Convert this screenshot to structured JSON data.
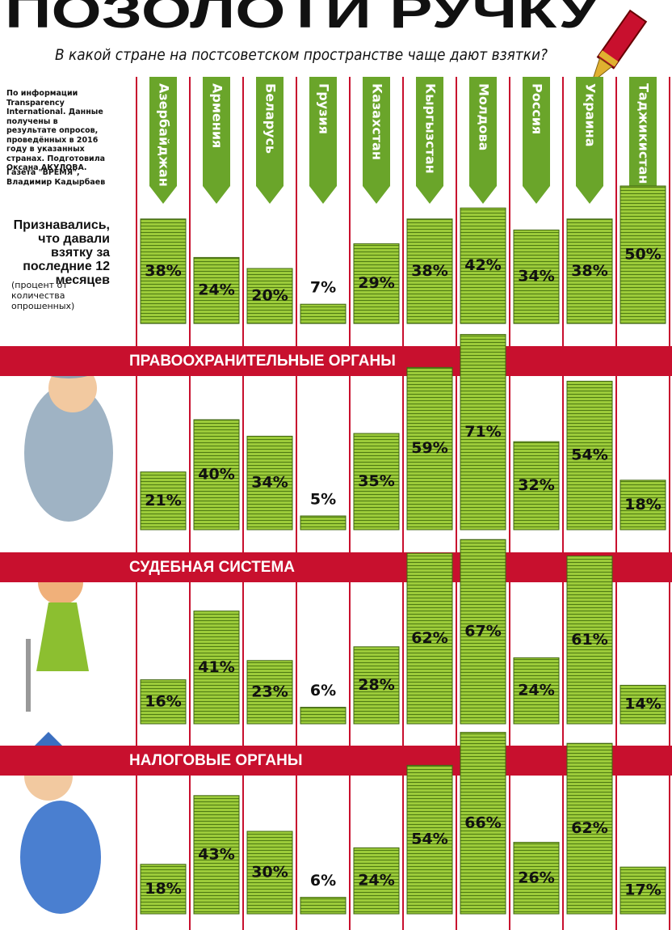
{
  "title": "ПОЗОЛОТИ РУЧКУ",
  "subtitle": "В какой стране на постсоветском пространстве чаще дают взятки?",
  "note": "По информации Transparency International. Данные получены в результате опросов, проведённых в 2016 году в указанных странах. Подготовила Оксана АКУЛОВА.",
  "credit": "Газета \"ВРЕМЯ\", Владимир Кадырбаев",
  "chart_data": [
    {
      "type": "bar",
      "title": "Признавались, что давали взятку за последние 12 месяцев",
      "subtitle": "(процент от количества опрошенных)",
      "categories": [
        "Азербайджан",
        "Армения",
        "Беларусь",
        "Грузия",
        "Казахстан",
        "Кыргызстан",
        "Молдова",
        "Россия",
        "Украина",
        "Таджикистан"
      ],
      "values": [
        38,
        24,
        20,
        7,
        29,
        38,
        42,
        34,
        38,
        50
      ],
      "value_labels": [
        "38%",
        "24%",
        "20%",
        "7%",
        "29%",
        "38%",
        "42%",
        "34%",
        "38%",
        "50%"
      ],
      "color": "#8dbb2e"
    },
    {
      "type": "bar",
      "title": "ПРАВООХРАНИТЕЛЬНЫЕ ОРГАНЫ",
      "values": [
        21,
        40,
        34,
        5,
        35,
        59,
        71,
        32,
        54,
        18
      ],
      "value_labels": [
        "21%",
        "40%",
        "34%",
        "5%",
        "35%",
        "59%",
        "71%",
        "32%",
        "54%",
        "18%"
      ],
      "color": "#8dbb2e"
    },
    {
      "type": "bar",
      "title": "СУДЕБНАЯ СИСТЕМА",
      "values": [
        16,
        41,
        23,
        6,
        28,
        62,
        67,
        24,
        61,
        14
      ],
      "value_labels": [
        "16%",
        "41%",
        "23%",
        "6%",
        "28%",
        "62%",
        "67%",
        "24%",
        "61%",
        "14%"
      ],
      "color": "#8dbb2e"
    },
    {
      "type": "bar",
      "title": "НАЛОГОВЫЕ ОРГАНЫ",
      "values": [
        18,
        43,
        30,
        6,
        24,
        54,
        66,
        26,
        62,
        17
      ],
      "value_labels": [
        "18%",
        "43%",
        "30%",
        "6%",
        "24%",
        "54%",
        "66%",
        "26%",
        "62%",
        "17%"
      ],
      "color": "#8dbb2e"
    }
  ]
}
